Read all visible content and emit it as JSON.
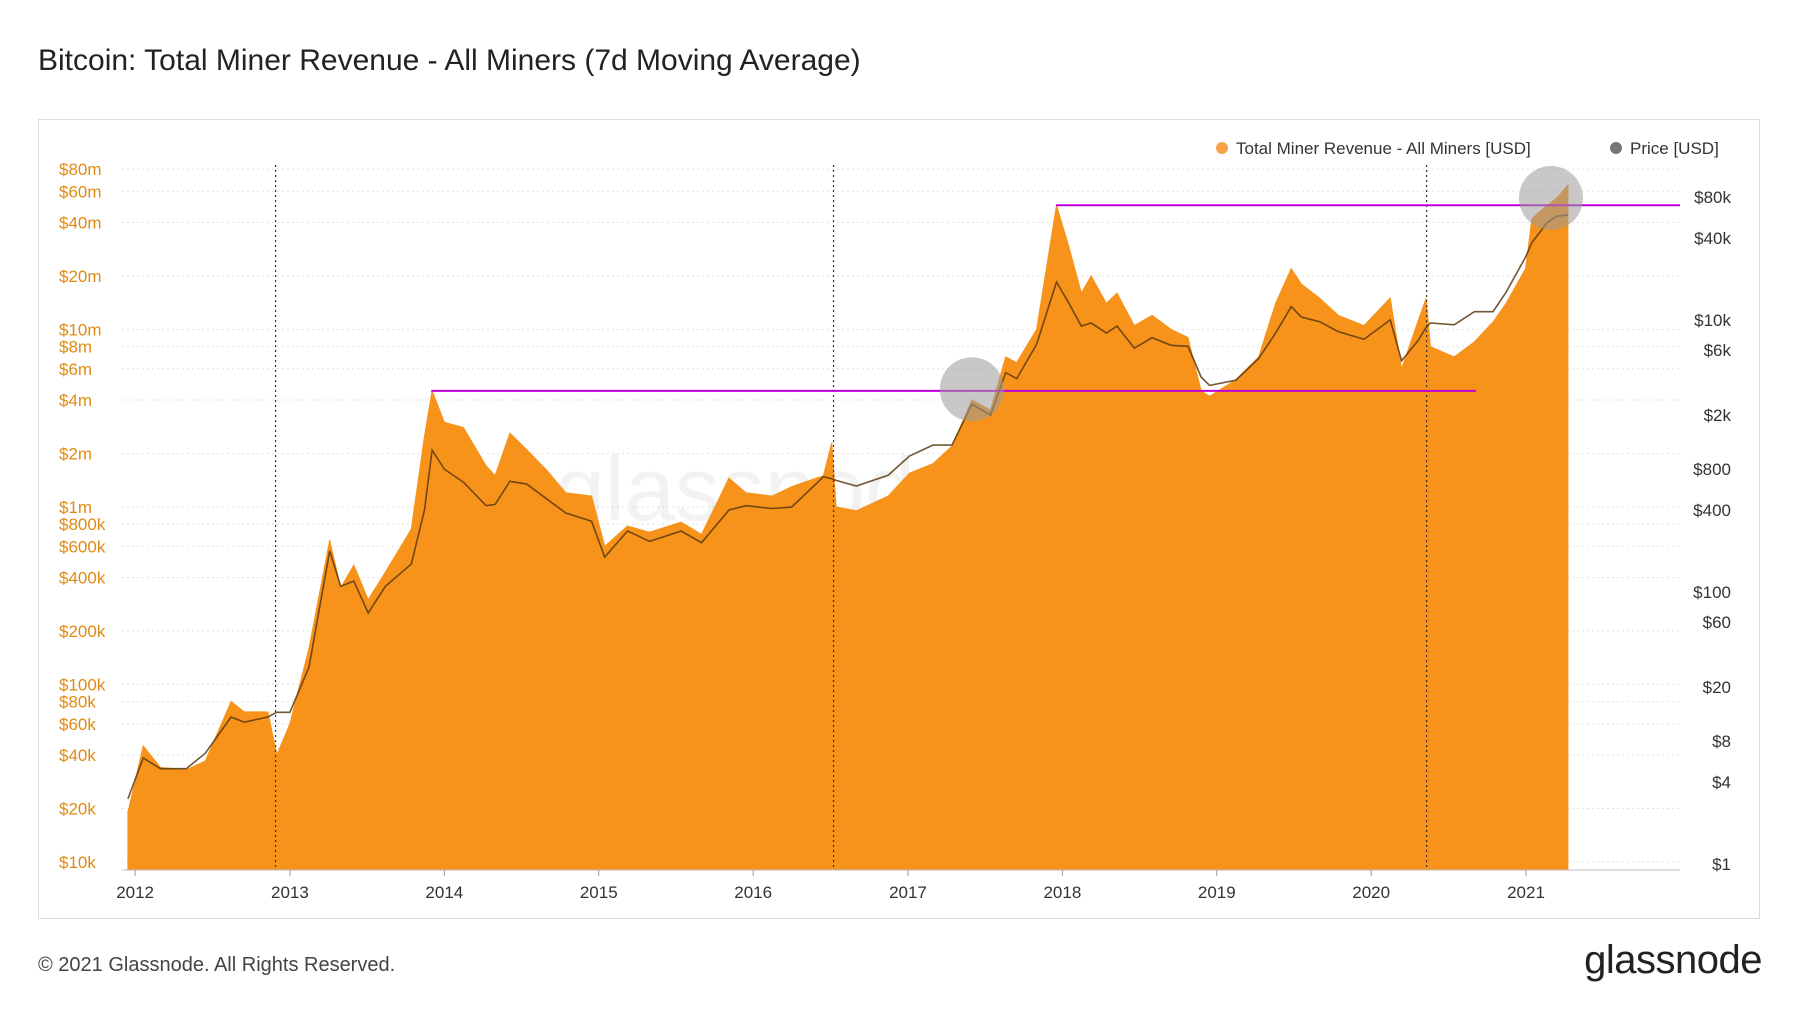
{
  "title": "Bitcoin: Total Miner Revenue - All Miners (7d Moving Average)",
  "footer": "© 2021 Glassnode. All Rights Reserved.",
  "brand": "glassnode",
  "watermark": "glassnode",
  "colors": {
    "revenue": "#f7931a",
    "revenue_legend": "#f7a24a",
    "price": "#7a7a7a",
    "price_line": "#5a3a10",
    "hline": "#c000d8",
    "circle": "#9b9b9b"
  },
  "chart_data": {
    "type": "area",
    "legend": {
      "position": "top-right",
      "items": [
        {
          "name": "Total Miner Revenue - All Miners [USD]",
          "color": "#f7a24a"
        },
        {
          "name": "Price [USD]",
          "color": "#777777"
        }
      ]
    },
    "x_ticks": [
      "2012",
      "2013",
      "2014",
      "2015",
      "2016",
      "2017",
      "2018",
      "2019",
      "2020",
      "2021"
    ],
    "x_range": [
      "2011-12-01",
      "2021-12-31"
    ],
    "y_left": {
      "scale": "log",
      "range": [
        9000,
        90000000
      ],
      "ticks": [
        {
          "v": 80000000,
          "label": "$80m"
        },
        {
          "v": 60000000,
          "label": "$60m"
        },
        {
          "v": 40000000,
          "label": "$40m"
        },
        {
          "v": 20000000,
          "label": "$20m"
        },
        {
          "v": 10000000,
          "label": "$10m"
        },
        {
          "v": 8000000,
          "label": "$8m"
        },
        {
          "v": 6000000,
          "label": "$6m"
        },
        {
          "v": 4000000,
          "label": "$4m"
        },
        {
          "v": 2000000,
          "label": "$2m"
        },
        {
          "v": 1000000,
          "label": "$1m"
        },
        {
          "v": 800000,
          "label": "$800k"
        },
        {
          "v": 600000,
          "label": "$600k"
        },
        {
          "v": 400000,
          "label": "$400k"
        },
        {
          "v": 200000,
          "label": "$200k"
        },
        {
          "v": 100000,
          "label": "$100k"
        },
        {
          "v": 80000,
          "label": "$80k"
        },
        {
          "v": 60000,
          "label": "$60k"
        },
        {
          "v": 40000,
          "label": "$40k"
        },
        {
          "v": 20000,
          "label": "$20k"
        },
        {
          "v": 10000,
          "label": "$10k"
        }
      ]
    },
    "y_right": {
      "scale": "log",
      "range": [
        0.9,
        150000
      ],
      "ticks": [
        {
          "v": 80000,
          "label": "$80k"
        },
        {
          "v": 40000,
          "label": "$40k"
        },
        {
          "v": 10000,
          "label": "$10k"
        },
        {
          "v": 6000,
          "label": "$6k"
        },
        {
          "v": 2000,
          "label": "$2k"
        },
        {
          "v": 800,
          "label": "$800"
        },
        {
          "v": 400,
          "label": "$400"
        },
        {
          "v": 100,
          "label": "$100"
        },
        {
          "v": 60,
          "label": "$60"
        },
        {
          "v": 20,
          "label": "$20"
        },
        {
          "v": 8,
          "label": "$8"
        },
        {
          "v": 4,
          "label": "$4"
        },
        {
          "v": 1,
          "label": "$1"
        }
      ]
    },
    "series": [
      {
        "name": "Total Miner Revenue - All Miners [USD]",
        "axis": "left",
        "points": [
          [
            "2011-12-15",
            19000
          ],
          [
            "2012-01-20",
            45000
          ],
          [
            "2012-03-01",
            34000
          ],
          [
            "2012-05-01",
            33000
          ],
          [
            "2012-06-15",
            37000
          ],
          [
            "2012-08-15",
            80000
          ],
          [
            "2012-09-15",
            70000
          ],
          [
            "2012-11-10",
            70000
          ],
          [
            "2012-12-01",
            40000
          ],
          [
            "2013-01-01",
            60000
          ],
          [
            "2013-02-15",
            160000
          ],
          [
            "2013-04-05",
            650000
          ],
          [
            "2013-05-01",
            350000
          ],
          [
            "2013-06-01",
            470000
          ],
          [
            "2013-07-05",
            300000
          ],
          [
            "2013-08-15",
            430000
          ],
          [
            "2013-10-15",
            750000
          ],
          [
            "2013-11-15",
            2500000
          ],
          [
            "2013-12-03",
            4500000
          ],
          [
            "2014-01-01",
            3000000
          ],
          [
            "2014-02-15",
            2800000
          ],
          [
            "2014-04-10",
            1700000
          ],
          [
            "2014-05-01",
            1500000
          ],
          [
            "2014-06-05",
            2600000
          ],
          [
            "2014-07-15",
            2100000
          ],
          [
            "2014-09-01",
            1600000
          ],
          [
            "2014-10-15",
            1200000
          ],
          [
            "2014-12-15",
            1150000
          ],
          [
            "2015-01-15",
            600000
          ],
          [
            "2015-03-10",
            780000
          ],
          [
            "2015-05-01",
            720000
          ],
          [
            "2015-07-15",
            820000
          ],
          [
            "2015-09-01",
            700000
          ],
          [
            "2015-11-05",
            1450000
          ],
          [
            "2015-12-15",
            1200000
          ],
          [
            "2016-02-15",
            1150000
          ],
          [
            "2016-04-01",
            1300000
          ],
          [
            "2016-06-15",
            1500000
          ],
          [
            "2016-07-05",
            2300000
          ],
          [
            "2016-07-15",
            1000000
          ],
          [
            "2016-09-01",
            950000
          ],
          [
            "2016-11-15",
            1150000
          ],
          [
            "2017-01-05",
            1550000
          ],
          [
            "2017-03-01",
            1750000
          ],
          [
            "2017-04-15",
            2200000
          ],
          [
            "2017-06-01",
            4000000
          ],
          [
            "2017-07-15",
            3500000
          ],
          [
            "2017-08-20",
            7000000
          ],
          [
            "2017-09-15",
            6500000
          ],
          [
            "2017-11-01",
            10000000
          ],
          [
            "2017-12-18",
            50000000
          ],
          [
            "2018-01-15",
            30000000
          ],
          [
            "2018-02-15",
            16000000
          ],
          [
            "2018-03-10",
            20000000
          ],
          [
            "2018-04-15",
            14000000
          ],
          [
            "2018-05-10",
            16000000
          ],
          [
            "2018-06-20",
            10500000
          ],
          [
            "2018-08-01",
            12000000
          ],
          [
            "2018-09-15",
            10000000
          ],
          [
            "2018-10-25",
            9000000
          ],
          [
            "2018-11-25",
            4500000
          ],
          [
            "2018-12-15",
            4200000
          ],
          [
            "2019-02-15",
            5200000
          ],
          [
            "2019-04-10",
            7000000
          ],
          [
            "2019-05-20",
            14000000
          ],
          [
            "2019-06-26",
            22000000
          ],
          [
            "2019-07-20",
            18000000
          ],
          [
            "2019-09-01",
            15000000
          ],
          [
            "2019-10-15",
            12000000
          ],
          [
            "2019-12-15",
            10500000
          ],
          [
            "2020-02-15",
            15000000
          ],
          [
            "2020-03-13",
            6000000
          ],
          [
            "2020-04-20",
            11000000
          ],
          [
            "2020-05-10",
            15000000
          ],
          [
            "2020-05-20",
            8000000
          ],
          [
            "2020-07-15",
            7000000
          ],
          [
            "2020-09-01",
            8500000
          ],
          [
            "2020-10-15",
            11000000
          ],
          [
            "2020-11-15",
            14000000
          ],
          [
            "2020-12-31",
            22000000
          ],
          [
            "2021-01-15",
            42000000
          ],
          [
            "2021-02-20",
            50000000
          ],
          [
            "2021-03-15",
            55000000
          ],
          [
            "2021-04-10",
            65000000
          ]
        ]
      },
      {
        "name": "Price [USD]",
        "axis": "right",
        "points": [
          [
            "2011-12-15",
            3
          ],
          [
            "2012-01-20",
            6
          ],
          [
            "2012-03-01",
            5
          ],
          [
            "2012-05-01",
            5
          ],
          [
            "2012-06-15",
            6.5
          ],
          [
            "2012-08-15",
            12
          ],
          [
            "2012-09-15",
            11
          ],
          [
            "2012-11-10",
            12
          ],
          [
            "2012-12-01",
            13
          ],
          [
            "2013-01-01",
            13
          ],
          [
            "2013-02-15",
            28
          ],
          [
            "2013-04-05",
            200
          ],
          [
            "2013-05-01",
            110
          ],
          [
            "2013-06-01",
            120
          ],
          [
            "2013-07-05",
            70
          ],
          [
            "2013-08-15",
            110
          ],
          [
            "2013-10-15",
            160
          ],
          [
            "2013-11-15",
            400
          ],
          [
            "2013-12-03",
            1100
          ],
          [
            "2014-01-01",
            800
          ],
          [
            "2014-02-15",
            640
          ],
          [
            "2014-04-10",
            430
          ],
          [
            "2014-05-01",
            440
          ],
          [
            "2014-06-05",
            650
          ],
          [
            "2014-07-15",
            620
          ],
          [
            "2014-09-01",
            480
          ],
          [
            "2014-10-15",
            380
          ],
          [
            "2014-12-15",
            330
          ],
          [
            "2015-01-15",
            180
          ],
          [
            "2015-03-10",
            280
          ],
          [
            "2015-05-01",
            235
          ],
          [
            "2015-07-15",
            280
          ],
          [
            "2015-09-01",
            230
          ],
          [
            "2015-11-05",
            400
          ],
          [
            "2015-12-15",
            430
          ],
          [
            "2016-02-15",
            410
          ],
          [
            "2016-04-01",
            420
          ],
          [
            "2016-06-15",
            700
          ],
          [
            "2016-07-05",
            680
          ],
          [
            "2016-07-15",
            660
          ],
          [
            "2016-09-01",
            600
          ],
          [
            "2016-11-15",
            720
          ],
          [
            "2017-01-05",
            1000
          ],
          [
            "2017-03-01",
            1200
          ],
          [
            "2017-04-15",
            1200
          ],
          [
            "2017-06-01",
            2400
          ],
          [
            "2017-07-15",
            2000
          ],
          [
            "2017-08-20",
            4100
          ],
          [
            "2017-09-15",
            3700
          ],
          [
            "2017-11-01",
            6600
          ],
          [
            "2017-12-18",
            19000
          ],
          [
            "2018-01-15",
            13500
          ],
          [
            "2018-02-15",
            9000
          ],
          [
            "2018-03-10",
            9500
          ],
          [
            "2018-04-15",
            8000
          ],
          [
            "2018-05-10",
            9000
          ],
          [
            "2018-06-20",
            6200
          ],
          [
            "2018-08-01",
            7400
          ],
          [
            "2018-09-15",
            6500
          ],
          [
            "2018-10-25",
            6400
          ],
          [
            "2018-11-25",
            3800
          ],
          [
            "2018-12-15",
            3300
          ],
          [
            "2019-02-15",
            3600
          ],
          [
            "2019-04-10",
            5200
          ],
          [
            "2019-05-20",
            8000
          ],
          [
            "2019-06-26",
            12500
          ],
          [
            "2019-07-20",
            10500
          ],
          [
            "2019-09-01",
            9700
          ],
          [
            "2019-10-15",
            8200
          ],
          [
            "2019-12-15",
            7200
          ],
          [
            "2020-02-15",
            10000
          ],
          [
            "2020-03-13",
            5000
          ],
          [
            "2020-04-20",
            7000
          ],
          [
            "2020-05-10",
            8800
          ],
          [
            "2020-05-20",
            9500
          ],
          [
            "2020-07-15",
            9200
          ],
          [
            "2020-09-01",
            11500
          ],
          [
            "2020-10-15",
            11500
          ],
          [
            "2020-11-15",
            16000
          ],
          [
            "2020-12-31",
            29000
          ],
          [
            "2021-01-15",
            37000
          ],
          [
            "2021-02-20",
            52000
          ],
          [
            "2021-03-15",
            58000
          ],
          [
            "2021-04-10",
            59000
          ]
        ]
      }
    ],
    "vertical_dotted_lines": [
      "2012-11-28",
      "2016-07-09",
      "2020-05-11"
    ],
    "horizontal_lines": [
      {
        "from": "2013-12-01",
        "to": "2020-09-05",
        "y": 4500000,
        "color": "#c000d8"
      },
      {
        "from": "2017-12-17",
        "to": "2021-12-31",
        "y": 50000000,
        "color": "#c000d8"
      }
    ],
    "highlight_circles": [
      {
        "x": "2017-06-01",
        "y": 4600000
      },
      {
        "x": "2021-03-01",
        "y": 55000000
      }
    ]
  }
}
